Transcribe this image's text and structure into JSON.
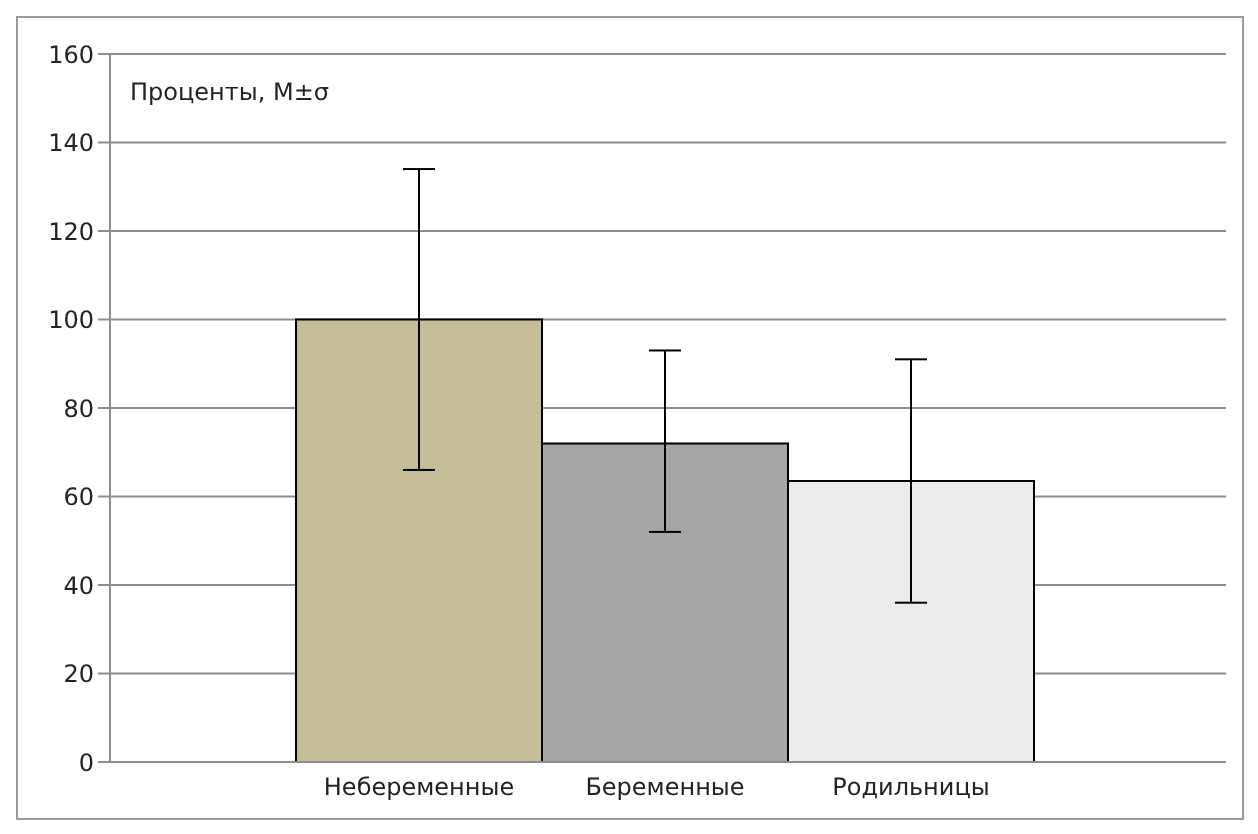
{
  "chart_data": {
    "type": "bar",
    "ylabel": "Проценты, М±σ",
    "categories": [
      "Небеременные",
      "Беременные",
      "Родильницы"
    ],
    "values": [
      100,
      72,
      63.5
    ],
    "colors": [
      "#c4bd97",
      "#a6a6a6",
      "#ececec"
    ],
    "errors": [
      [
        66,
        134
      ],
      [
        52,
        93
      ],
      [
        36,
        91
      ]
    ],
    "ylim": [
      0,
      160
    ],
    "yticks": [
      0,
      20,
      40,
      60,
      80,
      100,
      120,
      140,
      160
    ],
    "grid": "y"
  }
}
